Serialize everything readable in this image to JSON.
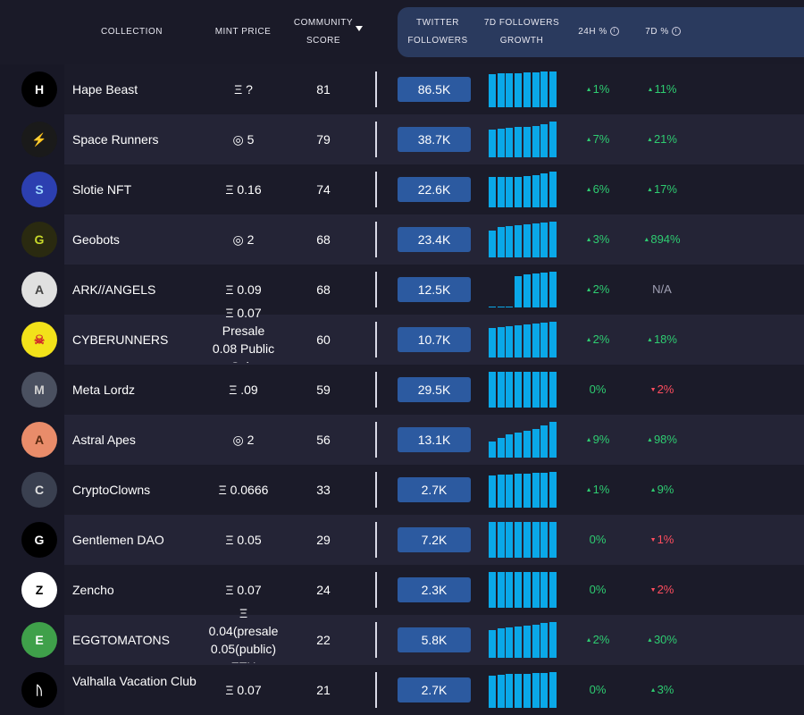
{
  "header": {
    "collection": "COLLECTION",
    "mint_price": "MINT PRICE",
    "community_line1": "COMMUNITY",
    "community_line2": "SCORE",
    "twitter_line1": "TWITTER",
    "twitter_line2": "FOLLOWERS",
    "growth_line1": "7D FOLLOWERS",
    "growth_line2": "GROWTH",
    "h24": "24H %",
    "d7": "7D %",
    "info_glyph": "i"
  },
  "colors": {
    "accent_blue": "#2c5aa0",
    "spark_blue": "#0aa8e8",
    "up_green": "#2ecc71",
    "down_red": "#ff4d5e"
  },
  "rows": [
    {
      "name": "Hape Beast",
      "price_lines": [
        "Ξ ?"
      ],
      "score": "81",
      "followers": "86.5K",
      "h24": "1%",
      "h24_dir": "up",
      "d7": "11%",
      "d7_dir": "up",
      "spark": [
        0.92,
        0.94,
        0.95,
        0.96,
        0.97,
        0.98,
        0.99,
        1.0
      ],
      "avatar": "H",
      "avatar_bg": "#000000",
      "avatar_fg": "#ffffff"
    },
    {
      "name": "Space Runners",
      "price_lines": [
        "◎ 5"
      ],
      "score": "79",
      "followers": "38.7K",
      "h24": "7%",
      "h24_dir": "up",
      "d7": "21%",
      "d7_dir": "up",
      "spark": [
        0.78,
        0.8,
        0.82,
        0.84,
        0.86,
        0.88,
        0.92,
        1.0
      ],
      "avatar": "⚡",
      "avatar_bg": "#1a1a1a",
      "avatar_fg": "#f5c518"
    },
    {
      "name": "Slotie NFT",
      "price_lines": [
        "Ξ 0.16"
      ],
      "score": "74",
      "followers": "22.6K",
      "h24": "6%",
      "h24_dir": "up",
      "d7": "17%",
      "d7_dir": "up",
      "spark": [
        0.84,
        0.86,
        0.85,
        0.86,
        0.88,
        0.9,
        0.95,
        1.0
      ],
      "avatar": "S",
      "avatar_bg": "#2c3fb0",
      "avatar_fg": "#9ed8ff"
    },
    {
      "name": "Geobots",
      "price_lines": [
        "◎ 2"
      ],
      "score": "68",
      "followers": "23.4K",
      "h24": "3%",
      "h24_dir": "up",
      "d7": "894%",
      "d7_dir": "up",
      "spark": [
        0.75,
        0.85,
        0.88,
        0.9,
        0.92,
        0.94,
        0.97,
        1.0
      ],
      "avatar": "G",
      "avatar_bg": "#2a2a10",
      "avatar_fg": "#c8d82a"
    },
    {
      "name": "ARK//ANGELS",
      "price_lines": [
        "Ξ 0.09"
      ],
      "score": "68",
      "followers": "12.5K",
      "h24": "2%",
      "h24_dir": "up",
      "d7": "N/A",
      "d7_dir": "na",
      "spark": [
        0,
        0,
        0,
        0.88,
        0.92,
        0.95,
        0.98,
        1.0
      ],
      "avatar": "A",
      "avatar_bg": "#e0e0e0",
      "avatar_fg": "#444444"
    },
    {
      "name": "CYBERUNNERS",
      "price_lines": [
        "Ξ 0.07",
        "Presale",
        "0.08 Public",
        "Sale"
      ],
      "score": "60",
      "followers": "10.7K",
      "h24": "2%",
      "h24_dir": "up",
      "d7": "18%",
      "d7_dir": "up",
      "spark": [
        0.82,
        0.86,
        0.88,
        0.9,
        0.92,
        0.94,
        0.97,
        1.0
      ],
      "avatar": "☠",
      "avatar_bg": "#f2e21a",
      "avatar_fg": "#d12a2a"
    },
    {
      "name": "Meta Lordz",
      "price_lines": [
        "Ξ .09"
      ],
      "score": "59",
      "followers": "29.5K",
      "h24": "0%",
      "h24_dir": "flat",
      "d7": "2%",
      "d7_dir": "down",
      "spark": [
        1.0,
        1.0,
        1.0,
        1.0,
        1.0,
        1.0,
        1.0,
        1.0
      ],
      "avatar": "M",
      "avatar_bg": "#4a5060",
      "avatar_fg": "#d0d0d0"
    },
    {
      "name": "Astral Apes",
      "price_lines": [
        "◎ 2"
      ],
      "score": "56",
      "followers": "13.1K",
      "h24": "9%",
      "h24_dir": "up",
      "d7": "98%",
      "d7_dir": "up",
      "spark": [
        0.45,
        0.55,
        0.65,
        0.7,
        0.75,
        0.8,
        0.9,
        1.0
      ],
      "avatar": "A",
      "avatar_bg": "#e98c6a",
      "avatar_fg": "#5a2a10"
    },
    {
      "name": "CryptoClowns",
      "price_lines": [
        "Ξ 0.0666"
      ],
      "score": "33",
      "followers": "2.7K",
      "h24": "1%",
      "h24_dir": "up",
      "d7": "9%",
      "d7_dir": "up",
      "spark": [
        0.9,
        0.92,
        0.93,
        0.95,
        0.96,
        0.97,
        0.98,
        1.0
      ],
      "avatar": "C",
      "avatar_bg": "#3a4050",
      "avatar_fg": "#e0e0e0"
    },
    {
      "name": "Gentlemen DAO",
      "price_lines": [
        "Ξ 0.05"
      ],
      "score": "29",
      "followers": "7.2K",
      "h24": "0%",
      "h24_dir": "flat",
      "d7": "1%",
      "d7_dir": "down",
      "spark": [
        1.0,
        1.0,
        1.0,
        1.0,
        1.0,
        1.0,
        1.0,
        1.0
      ],
      "avatar": "G",
      "avatar_bg": "#000000",
      "avatar_fg": "#ffffff"
    },
    {
      "name": "Zencho",
      "price_lines": [
        "Ξ 0.07"
      ],
      "score": "24",
      "followers": "2.3K",
      "h24": "0%",
      "h24_dir": "flat",
      "d7": "2%",
      "d7_dir": "down",
      "spark": [
        1.0,
        1.0,
        1.0,
        1.0,
        1.0,
        1.0,
        1.0,
        1.0
      ],
      "avatar": "Z",
      "avatar_bg": "#ffffff",
      "avatar_fg": "#000000"
    },
    {
      "name": "EGGTOMATONS",
      "price_lines": [
        "Ξ",
        "0.04(presale",
        "0.05(public)",
        "ETH"
      ],
      "score": "22",
      "followers": "5.8K",
      "h24": "2%",
      "h24_dir": "up",
      "d7": "30%",
      "d7_dir": "up",
      "spark": [
        0.78,
        0.82,
        0.86,
        0.88,
        0.9,
        0.93,
        0.97,
        1.0
      ],
      "avatar": "E",
      "avatar_bg": "#3fa04a",
      "avatar_fg": "#ffffff"
    },
    {
      "name": "Valhalla Vacation Club",
      "price_lines": [
        "Ξ 0.07"
      ],
      "score": "21",
      "followers": "2.7K",
      "h24": "0%",
      "h24_dir": "flat",
      "d7": "3%",
      "d7_dir": "up",
      "spark": [
        0.9,
        0.92,
        0.94,
        0.95,
        0.96,
        0.97,
        0.98,
        1.0
      ],
      "avatar": "ᚢ",
      "avatar_bg": "#000000",
      "avatar_fg": "#ffffff"
    }
  ]
}
